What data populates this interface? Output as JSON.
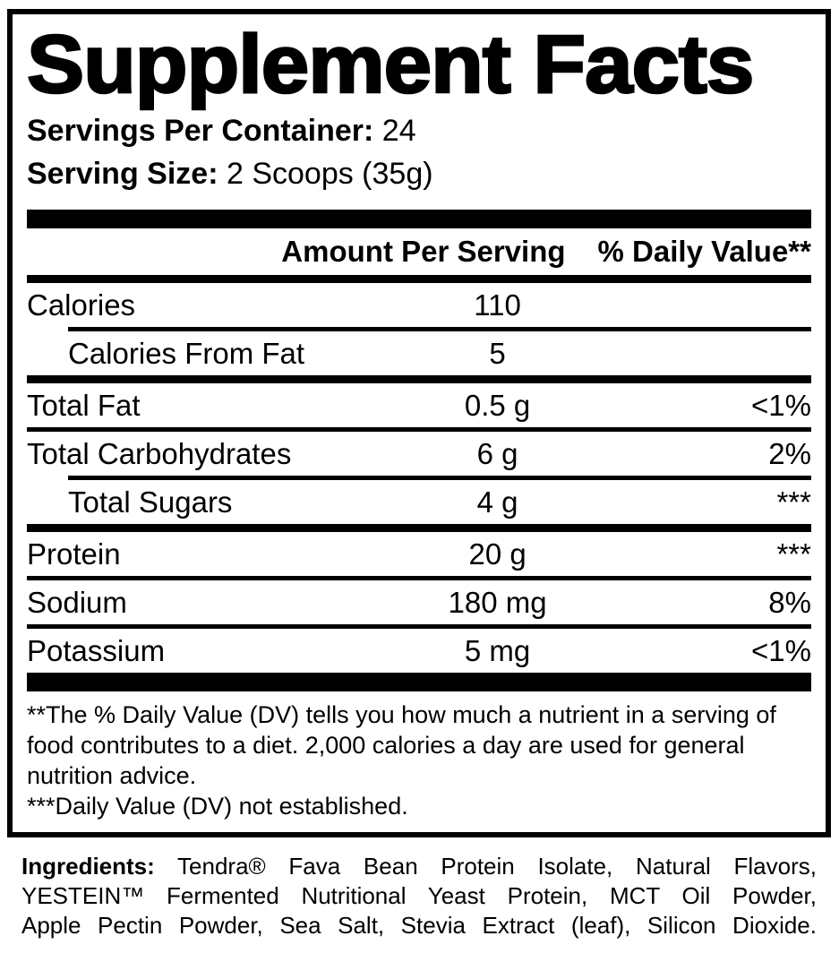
{
  "title": "Supplement Facts",
  "serving_info": {
    "servings_label": "Servings Per Container:",
    "servings_value": "24",
    "size_label": "Serving Size:",
    "size_value": "2 Scoops (35g)"
  },
  "table": {
    "col_amount": "Amount Per Serving",
    "col_dv": "% Daily Value**",
    "rows": [
      {
        "label": "Calories",
        "amount": "110",
        "dv": ""
      },
      {
        "label": "Calories From Fat",
        "amount": "5",
        "dv": ""
      },
      {
        "label": "Total Fat",
        "amount": "0.5 g",
        "dv": "<1%"
      },
      {
        "label": "Total Carbohydrates",
        "amount": "6 g",
        "dv": "2%"
      },
      {
        "label": "Total Sugars",
        "amount": "4 g",
        "dv": "***"
      },
      {
        "label": "Protein",
        "amount": "20 g",
        "dv": "***"
      },
      {
        "label": "Sodium",
        "amount": "180 mg",
        "dv": "8%"
      },
      {
        "label": "Potassium",
        "amount": "5 mg",
        "dv": "<1%"
      }
    ]
  },
  "footnotes": {
    "dv_note": "**The % Daily Value (DV) tells you how much a nutrient in a serving of food contributes to a diet. 2,000 calories a day are used for general nutrition advice.",
    "not_established_note": "***Daily Value (DV) not established."
  },
  "ingredients": {
    "label": "Ingredients:",
    "line1": "Tendra® Fava Bean Protein Isolate, Natural Flavors,",
    "line2": "YESTEIN™ Fermented Nutritional Yeast Protein, MCT Oil Powder,",
    "line3": "Apple Pectin Powder, Sea Salt, Stevia Extract (leaf), Silicon Dioxide."
  },
  "colors": {
    "text": "#000000",
    "background": "#ffffff"
  }
}
